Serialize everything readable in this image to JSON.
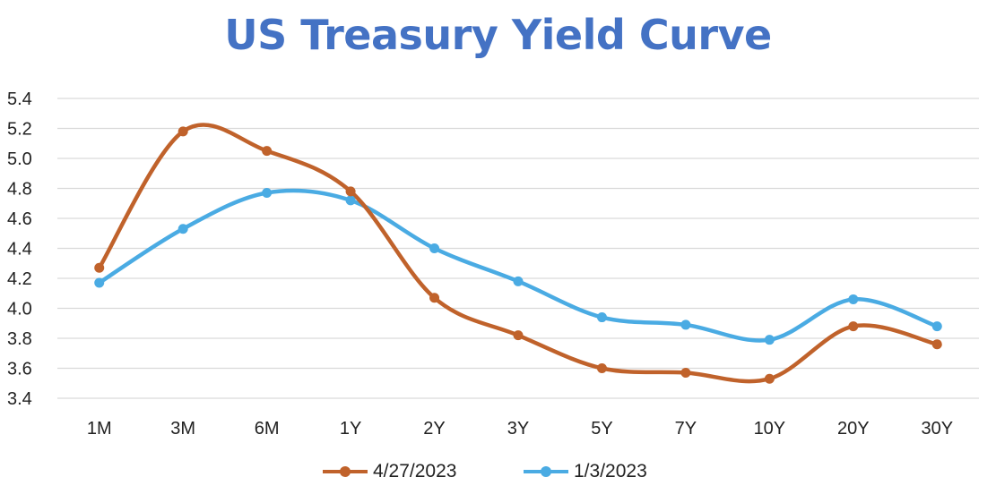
{
  "chart_data": {
    "type": "line",
    "title": "US Treasury Yield Curve",
    "xlabel": "",
    "ylabel": "",
    "categories": [
      "1M",
      "3M",
      "6M",
      "1Y",
      "2Y",
      "3Y",
      "5Y",
      "7Y",
      "10Y",
      "20Y",
      "30Y"
    ],
    "ylim": [
      3.4,
      5.4
    ],
    "yticks": [
      "3.4",
      "3.6",
      "3.8",
      "4.0",
      "4.2",
      "4.4",
      "4.6",
      "4.8",
      "5.0",
      "5.2",
      "5.4"
    ],
    "grid": true,
    "smooth": true,
    "legend_position": "bottom",
    "series": [
      {
        "name": "4/27/2023",
        "color": "#c0622b",
        "values": [
          4.27,
          5.18,
          5.05,
          4.78,
          4.07,
          3.82,
          3.6,
          3.57,
          3.53,
          3.88,
          3.76
        ]
      },
      {
        "name": "1/3/2023",
        "color": "#4aabe3",
        "values": [
          4.17,
          4.53,
          4.77,
          4.72,
          4.4,
          4.18,
          3.94,
          3.89,
          3.79,
          4.06,
          3.88
        ]
      }
    ]
  }
}
